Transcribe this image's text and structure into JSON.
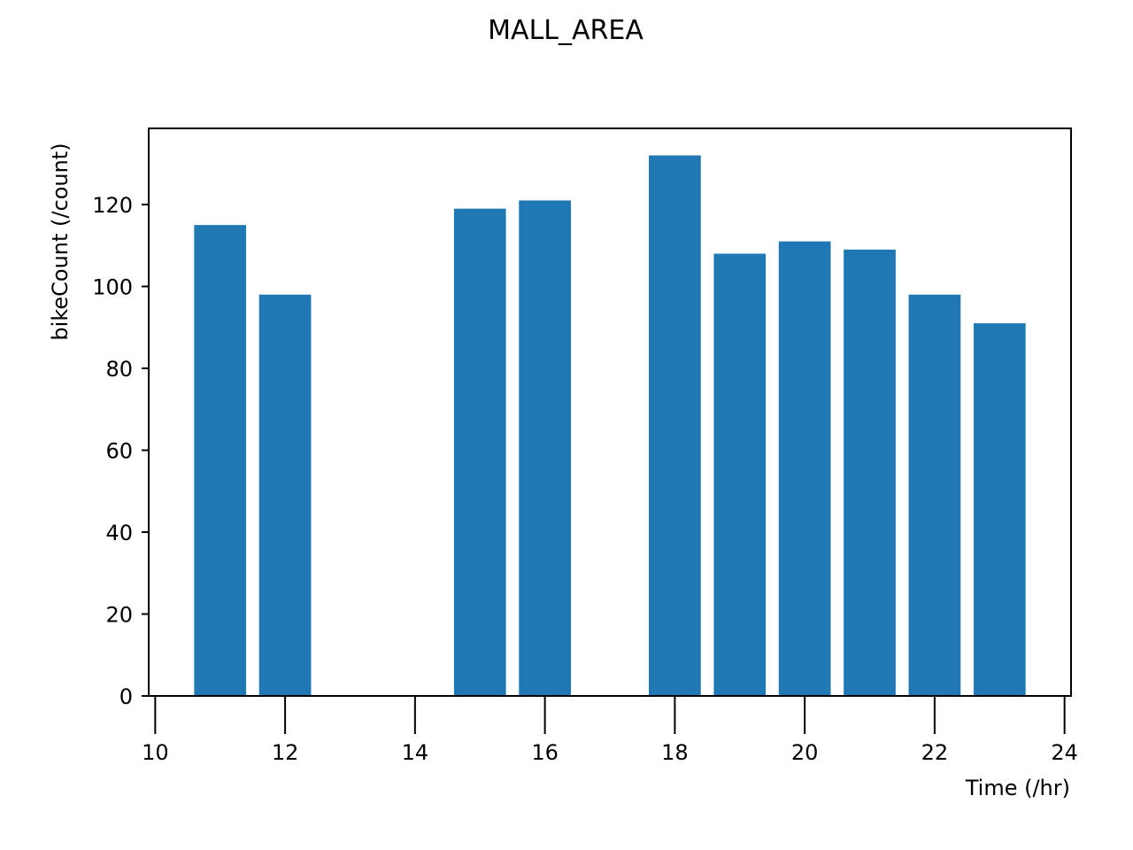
{
  "chart_data": {
    "type": "bar",
    "title": "MALL_AREA",
    "xlabel": "Time (/hr)",
    "ylabel": "bikeCount (/count)",
    "x": [
      11,
      12,
      15,
      16,
      18,
      19,
      20,
      21,
      22,
      23
    ],
    "values": [
      115,
      98,
      119,
      121,
      132,
      108,
      111,
      109,
      98,
      91
    ],
    "bar_color": "#1f77b4",
    "xlim": [
      9.9,
      24.1
    ],
    "ylim": [
      0,
      138.6
    ],
    "x_ticks": [
      "10",
      "12",
      "14",
      "16",
      "18",
      "20",
      "22",
      "24"
    ],
    "y_ticks": [
      "0",
      "20",
      "40",
      "60",
      "80",
      "100",
      "120"
    ],
    "grid": false,
    "legend": "none"
  }
}
